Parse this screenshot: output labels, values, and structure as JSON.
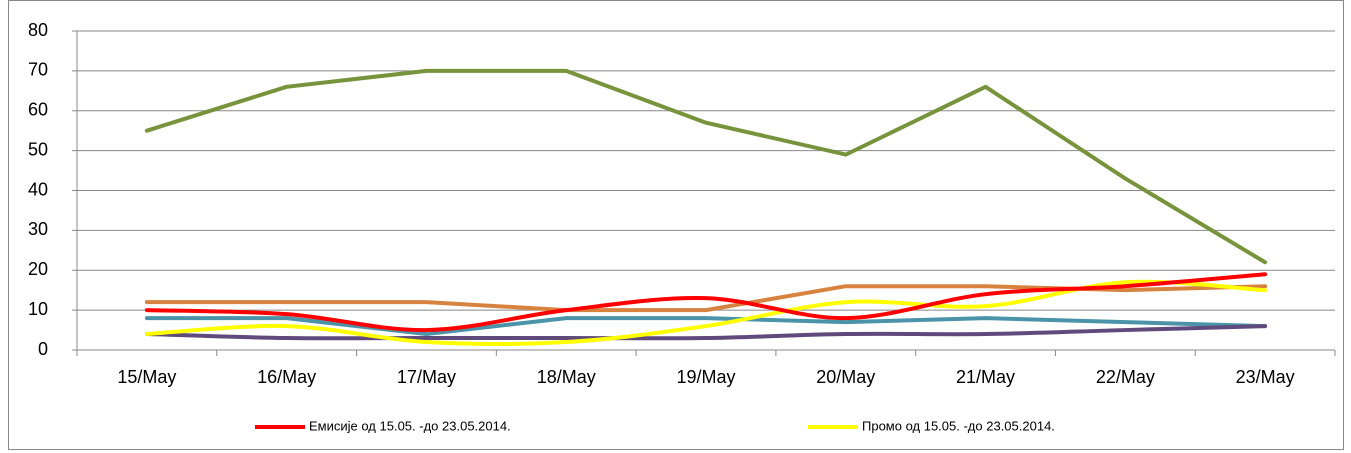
{
  "chart_data": {
    "type": "line",
    "categories": [
      "15/May",
      "16/May",
      "17/May",
      "18/May",
      "19/May",
      "20/May",
      "21/May",
      "22/May",
      "23/May"
    ],
    "ylim": [
      0,
      80
    ],
    "yticks": [
      0,
      10,
      20,
      30,
      40,
      50,
      60,
      70,
      80
    ],
    "grid": true,
    "legend": "bottom",
    "series": [
      {
        "color": "#77933c",
        "smooth": false,
        "values": [
          55,
          66,
          70,
          70,
          57,
          49,
          66,
          43,
          22
        ]
      },
      {
        "color": "#d8823f",
        "smooth": false,
        "values": [
          12,
          12,
          12,
          10,
          10,
          16,
          16,
          15,
          16
        ]
      },
      {
        "color": "#4a93a8",
        "smooth": false,
        "values": [
          8,
          8,
          4,
          8,
          8,
          7,
          8,
          7,
          6
        ]
      },
      {
        "color": "#604a7b",
        "smooth": true,
        "values": [
          4,
          3,
          3,
          3,
          3,
          4,
          4,
          5,
          6
        ]
      },
      {
        "name": "Промо од 15.05. -до 23.05.2014.",
        "color": "#ffff00",
        "smooth": true,
        "values": [
          4,
          6,
          2,
          2,
          6,
          12,
          11,
          17,
          15
        ]
      },
      {
        "name": "Емисије од 15.05. -до 23.05.2014.",
        "color": "#ff0000",
        "smooth": true,
        "values": [
          10,
          9,
          5,
          10,
          13,
          8,
          14,
          16,
          19
        ]
      }
    ]
  }
}
